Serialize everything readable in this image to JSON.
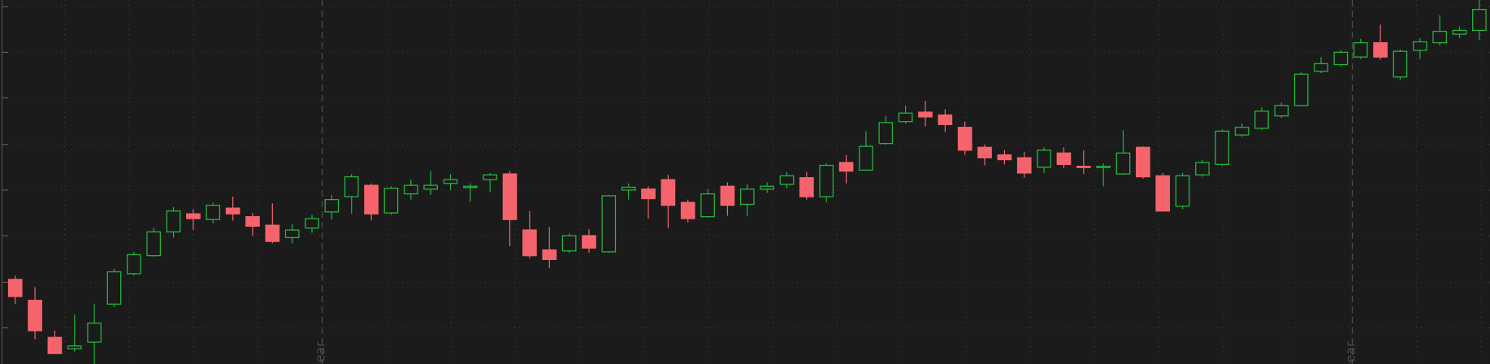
{
  "chart_data": {
    "type": "candlestick",
    "open": [
      89,
      67,
      28,
      16,
      23,
      63,
      95,
      114,
      139,
      158,
      152,
      164,
      155,
      146,
      133,
      143,
      160,
      176,
      188,
      159,
      179,
      184,
      190,
      186,
      194,
      200,
      141,
      120,
      119,
      135,
      118,
      183,
      184,
      194,
      170,
      155,
      187,
      168,
      184,
      189,
      196,
      176,
      212,
      204,
      232,
      255,
      265,
      262,
      249,
      228,
      220,
      217,
      207,
      222,
      208,
      207,
      200,
      228,
      198,
      166,
      199,
      210,
      241,
      248,
      261,
      272,
      308,
      315,
      323,
      338,
      302,
      330,
      338,
      347,
      351
    ],
    "high": [
      93,
      81,
      35,
      52,
      63,
      100,
      118,
      143,
      165,
      163,
      170,
      176,
      159,
      169,
      147,
      157,
      178,
      200,
      190,
      187,
      194,
      203,
      200,
      190,
      201,
      203,
      161,
      144,
      137,
      142,
      178,
      190,
      187,
      199,
      173,
      184,
      191,
      189,
      191,
      202,
      202,
      211,
      220,
      245,
      261,
      272,
      277,
      268,
      255,
      231,
      225,
      223,
      228,
      228,
      225,
      211,
      246,
      229,
      201,
      201,
      215,
      247,
      253,
      270,
      275,
      307,
      323,
      330,
      342,
      357,
      331,
      343,
      367,
      355,
      383
    ],
    "low": [
      63,
      26,
      11,
      13,
      0,
      60,
      93,
      113,
      133,
      141,
      148,
      151,
      135,
      127,
      127,
      138,
      152,
      158,
      151,
      157,
      173,
      178,
      183,
      171,
      181,
      124,
      111,
      101,
      117,
      117,
      117,
      173,
      153,
      143,
      149,
      154,
      156,
      156,
      180,
      185,
      173,
      170,
      190,
      204,
      231,
      253,
      250,
      244,
      220,
      209,
      210,
      196,
      201,
      206,
      200,
      187,
      199,
      195,
      161,
      163,
      197,
      208,
      239,
      246,
      259,
      271,
      306,
      313,
      321,
      320,
      299,
      321,
      335,
      343,
      341
    ],
    "close": [
      71,
      35,
      11,
      19,
      43,
      97,
      115,
      139,
      161,
      153,
      167,
      158,
      145,
      129,
      141,
      153,
      173,
      197,
      158,
      185,
      188,
      188,
      194,
      187,
      199,
      152,
      114,
      110,
      135,
      122,
      177,
      186,
      174,
      167,
      153,
      179,
      167,
      184,
      187,
      198,
      176,
      209,
      203,
      229,
      254,
      264,
      260,
      252,
      225,
      217,
      215,
      201,
      225,
      210,
      207,
      208,
      222,
      197,
      161,
      198,
      212,
      245,
      249,
      266,
      272,
      305,
      316,
      328,
      338,
      323,
      329,
      339,
      350,
      351,
      373
    ],
    "up_color": "#22b43c",
    "down_color": "#f5646c",
    "ylim": [
      0,
      383
    ],
    "yticks": [
      38,
      86,
      135,
      183,
      231,
      280,
      328,
      376
    ],
    "grid": true,
    "separator_labels": [
      "year",
      "year"
    ]
  }
}
